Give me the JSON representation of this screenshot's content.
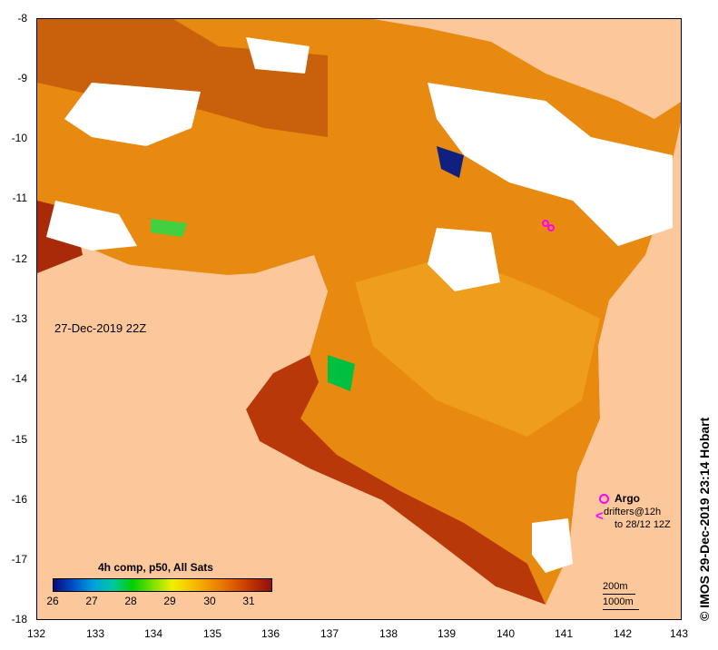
{
  "map": {
    "timestamp": "27-Dec-2019 22Z",
    "credit": "© IMOS 29-Dec-2019 23:14 Hobart",
    "x_ticks": [
      "132",
      "133",
      "134",
      "135",
      "136",
      "137",
      "138",
      "139",
      "140",
      "141",
      "142",
      "143"
    ],
    "y_ticks": [
      "-8",
      "-9",
      "-10",
      "-11",
      "-12",
      "-13",
      "-14",
      "-15",
      "-16",
      "-17",
      "-18"
    ]
  },
  "colorbar": {
    "title": "4h comp, p50, All Sats",
    "labels": [
      "26",
      "27",
      "28",
      "29",
      "30",
      "31"
    ]
  },
  "legend": {
    "argo": "Argo",
    "drifters_line1": "drifters@12h",
    "drifters_line2": "to 28/12 12Z"
  },
  "scale": {
    "label_200": "200m",
    "label_1000": "1000m"
  },
  "colors": {
    "land": "#fcc89b",
    "sea_warm": "#e88a10",
    "sea_hot": "#a82a08",
    "cloud": "#ffffff",
    "marker": "#ff00ff"
  }
}
